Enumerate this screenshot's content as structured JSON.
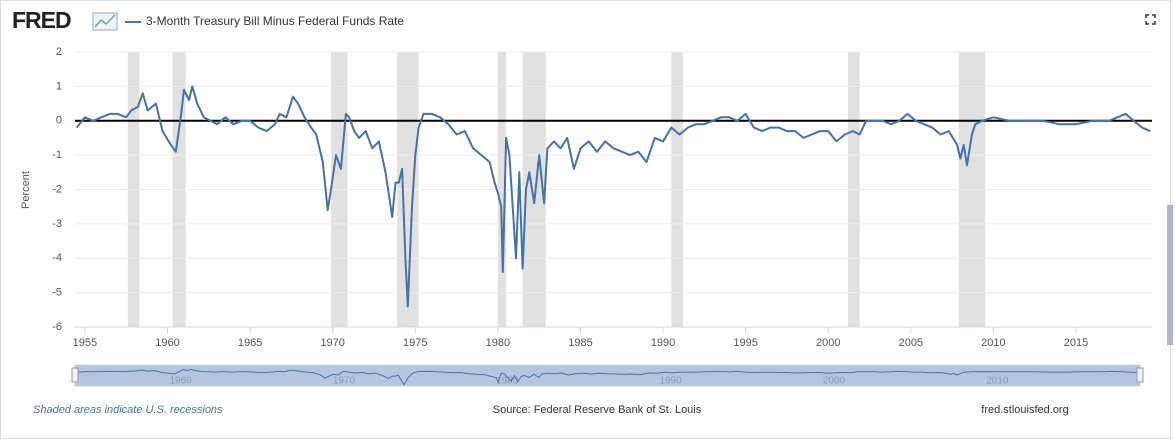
{
  "chart_data": {
    "type": "line",
    "logo": "FRED",
    "y_label": "Percent",
    "note": "Shaded areas indicate U.S. recessions",
    "source": "Source: Federal Reserve Bank of St. Louis",
    "url": "fred.stlouisfed.org",
    "xlim": [
      1954.4,
      2019.6
    ],
    "xticks": [
      1955,
      1960,
      1965,
      1970,
      1975,
      1980,
      1985,
      1990,
      1995,
      2000,
      2005,
      2010,
      2015
    ],
    "ylim": [
      -6,
      2
    ],
    "yticks": [
      -6,
      -5,
      -4,
      -3,
      -2,
      -1,
      0,
      1,
      2
    ],
    "grid": true,
    "zero_line": 0,
    "recessions": [
      [
        1957.6,
        1958.3
      ],
      [
        1960.3,
        1961.1
      ],
      [
        1969.9,
        1970.9
      ],
      [
        1973.9,
        1975.2
      ],
      [
        1980.0,
        1980.5
      ],
      [
        1981.5,
        1982.9
      ],
      [
        1990.5,
        1991.2
      ],
      [
        2001.2,
        2001.9
      ],
      [
        2007.9,
        2009.5
      ]
    ],
    "navigator_ticks": [
      1960,
      1970,
      1980,
      1990,
      2000,
      2010
    ],
    "x": [
      1954.5,
      1955,
      1955.5,
      1956,
      1956.5,
      1957,
      1957.5,
      1957.8,
      1958.2,
      1958.5,
      1958.8,
      1959.3,
      1959.7,
      1960.2,
      1960.5,
      1960.8,
      1961,
      1961.3,
      1961.5,
      1961.8,
      1962.2,
      1962.6,
      1963,
      1963.5,
      1964,
      1964.5,
      1965,
      1965.5,
      1966,
      1966.5,
      1966.8,
      1967.2,
      1967.6,
      1967.9,
      1968.3,
      1968.7,
      1969,
      1969.4,
      1969.7,
      1969.9,
      1970.2,
      1970.5,
      1970.8,
      1971,
      1971.3,
      1971.6,
      1972,
      1972.4,
      1972.8,
      1973.2,
      1973.6,
      1973.8,
      1974,
      1974.2,
      1974.4,
      1974.55,
      1974.8,
      1975,
      1975.2,
      1975.5,
      1976,
      1976.5,
      1977,
      1977.5,
      1978,
      1978.5,
      1979,
      1979.5,
      1979.8,
      1980,
      1980.2,
      1980.3,
      1980.5,
      1980.7,
      1980.9,
      1981.1,
      1981.3,
      1981.5,
      1981.7,
      1981.9,
      1982.2,
      1982.5,
      1982.8,
      1983,
      1983.4,
      1983.8,
      1984.2,
      1984.6,
      1985,
      1985.5,
      1986,
      1986.5,
      1987,
      1987.5,
      1988,
      1988.5,
      1989,
      1989.5,
      1990,
      1990.5,
      1991,
      1991.5,
      1992,
      1992.5,
      1993,
      1993.5,
      1994,
      1994.5,
      1995,
      1995.5,
      1996,
      1996.5,
      1997,
      1997.5,
      1998,
      1998.5,
      1999,
      1999.5,
      2000,
      2000.5,
      2001,
      2001.5,
      2001.9,
      2002.3,
      2002.8,
      2003.3,
      2003.8,
      2004.3,
      2004.8,
      2005.3,
      2005.8,
      2006.3,
      2006.8,
      2007.3,
      2007.8,
      2008,
      2008.2,
      2008.4,
      2008.7,
      2008.9,
      2009.3,
      2010,
      2011,
      2012,
      2013,
      2014,
      2015,
      2016,
      2017,
      2017.5,
      2018,
      2018.5,
      2019,
      2019.5
    ],
    "series": [
      {
        "name": "3-Month Treasury Bill Minus Federal Funds Rate",
        "color": "#4572a7",
        "values": [
          -0.2,
          0.1,
          0,
          0.1,
          0.2,
          0.2,
          0.1,
          0.3,
          0.4,
          0.8,
          0.3,
          0.5,
          -0.3,
          -0.7,
          -0.9,
          0.1,
          0.9,
          0.6,
          1.0,
          0.5,
          0.1,
          0,
          -0.1,
          0.1,
          -0.1,
          0,
          0,
          -0.2,
          -0.3,
          -0.1,
          0.2,
          0.1,
          0.7,
          0.5,
          0.1,
          -0.2,
          -0.4,
          -1.2,
          -2.6,
          -2.0,
          -1.0,
          -1.4,
          0.2,
          0.1,
          -0.3,
          -0.5,
          -0.3,
          -0.8,
          -0.6,
          -1.5,
          -2.8,
          -1.8,
          -1.8,
          -1.4,
          -4.0,
          -5.4,
          -2.5,
          -1.0,
          -0.2,
          0.2,
          0.2,
          0.1,
          -0.1,
          -0.4,
          -0.3,
          -0.8,
          -1.0,
          -1.2,
          -1.8,
          -2.1,
          -2.5,
          -4.4,
          -0.5,
          -1.0,
          -2.5,
          -4.0,
          -1.5,
          -4.3,
          -2.0,
          -1.5,
          -2.4,
          -1.0,
          -2.4,
          -0.8,
          -0.6,
          -0.8,
          -0.5,
          -1.4,
          -0.8,
          -0.6,
          -0.9,
          -0.6,
          -0.8,
          -0.9,
          -1.0,
          -0.9,
          -1.2,
          -0.5,
          -0.6,
          -0.2,
          -0.4,
          -0.2,
          -0.1,
          -0.1,
          0,
          0.1,
          0.1,
          0,
          0.2,
          -0.2,
          -0.3,
          -0.2,
          -0.2,
          -0.3,
          -0.3,
          -0.5,
          -0.4,
          -0.3,
          -0.3,
          -0.6,
          -0.4,
          -0.3,
          -0.4,
          0,
          0,
          0,
          -0.1,
          0,
          0.2,
          0,
          -0.1,
          -0.2,
          -0.4,
          -0.3,
          -0.7,
          -1.1,
          -0.7,
          -1.3,
          -0.4,
          -0.1,
          0,
          0.1,
          0,
          0,
          0,
          -0.1,
          -0.1,
          0,
          0,
          0.1,
          0.2,
          0,
          -0.2,
          -0.3
        ]
      }
    ]
  }
}
